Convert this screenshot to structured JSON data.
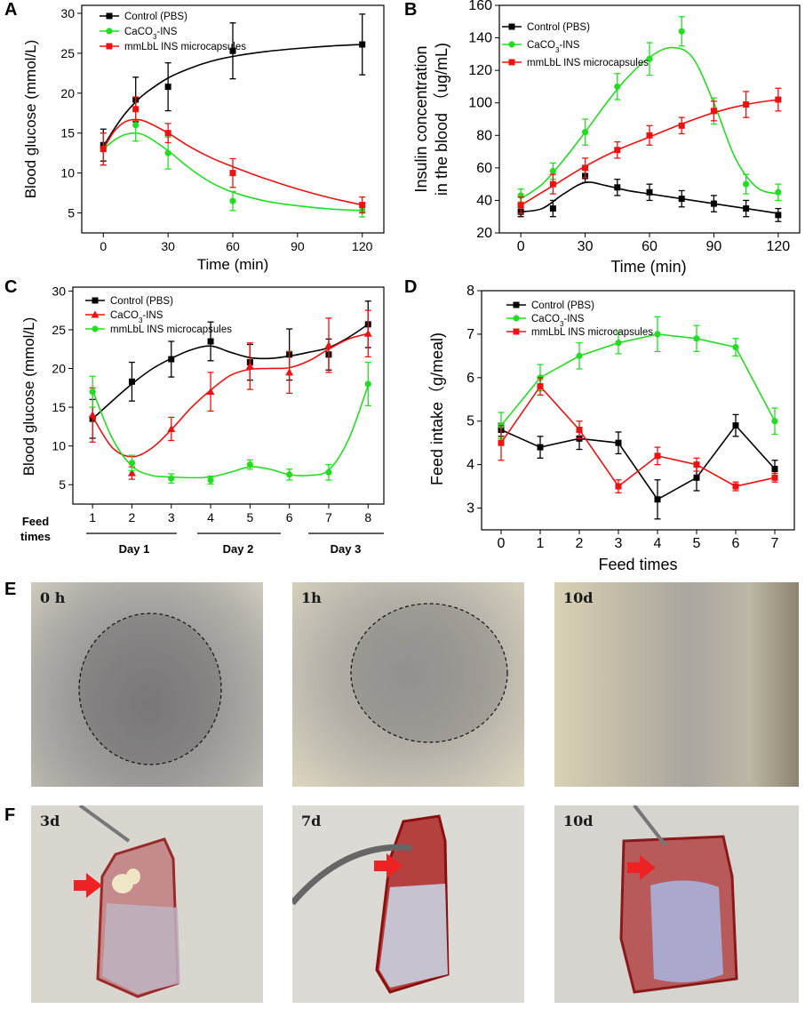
{
  "panels": {
    "A": "A",
    "B": "B",
    "C": "C",
    "D": "D",
    "E": "E",
    "F": "F"
  },
  "colors": {
    "control": "#000000",
    "caco3": "#22dd22",
    "mmlbl": "#ee1111",
    "arrow": "#ee2222"
  },
  "chart_data": [
    {
      "id": "A",
      "type": "line",
      "title": "",
      "xlabel": "Time (min)",
      "ylabel": "Blood glucose (mmol/L)",
      "xlim": [
        -10,
        130
      ],
      "ylim": [
        2.5,
        31
      ],
      "xticks": [
        0,
        30,
        60,
        90,
        120
      ],
      "yticks": [
        5,
        10,
        15,
        20,
        25,
        30
      ],
      "legend": [
        "Control (PBS)",
        "CaCO3-INS",
        "mmLbL INS microcapsules"
      ],
      "series": [
        {
          "name": "Control (PBS)",
          "color": "#000000",
          "marker": "square",
          "x": [
            0,
            15,
            30,
            60,
            120
          ],
          "y": [
            13.5,
            19.2,
            20.8,
            25.3,
            26.1
          ],
          "err": [
            2.0,
            2.8,
            3.0,
            3.5,
            3.8
          ],
          "curve_x": [
            0,
            5,
            10,
            15,
            20,
            30,
            40,
            50,
            60,
            75,
            90,
            105,
            120
          ],
          "curve_y": [
            13.3,
            15.5,
            17.4,
            18.9,
            20.1,
            21.9,
            23.1,
            24.0,
            24.6,
            25.2,
            25.6,
            25.9,
            26.1
          ]
        },
        {
          "name": "CaCO3-INS",
          "color": "#22dd22",
          "marker": "circle",
          "x": [
            0,
            15,
            30,
            60,
            120
          ],
          "y": [
            13.0,
            16.0,
            12.5,
            6.5,
            5.3
          ],
          "err": [
            2.0,
            2.0,
            2.0,
            1.2,
            0.8
          ],
          "curve_x": [
            0,
            5,
            10,
            15,
            20,
            30,
            40,
            50,
            60,
            75,
            90,
            105,
            120
          ],
          "curve_y": [
            13.0,
            14.1,
            14.8,
            15.0,
            14.6,
            12.8,
            10.6,
            8.8,
            7.6,
            6.5,
            5.9,
            5.5,
            5.3
          ]
        },
        {
          "name": "mmLbL INS microcapsules",
          "color": "#ee1111",
          "marker": "square",
          "x": [
            0,
            15,
            30,
            60,
            120
          ],
          "y": [
            13.0,
            18.0,
            15.0,
            10.0,
            6.0
          ],
          "err": [
            2.0,
            1.5,
            1.2,
            1.8,
            1.0
          ],
          "curve_x": [
            0,
            5,
            10,
            15,
            20,
            30,
            40,
            50,
            60,
            75,
            90,
            105,
            120
          ],
          "curve_y": [
            13.0,
            15.2,
            16.4,
            16.7,
            16.4,
            15.0,
            13.3,
            11.9,
            10.8,
            9.3,
            8.0,
            6.9,
            6.0
          ]
        }
      ]
    },
    {
      "id": "B",
      "type": "line",
      "title": "",
      "xlabel": "Time (min)",
      "ylabel": "Insulin concentration in the blood (ug/mL)",
      "ylabel_line1": "Insulin concentration",
      "ylabel_line2": "in the blood （ug/mL)",
      "xlim": [
        -10,
        130
      ],
      "ylim": [
        20,
        160
      ],
      "xticks": [
        0,
        30,
        60,
        90,
        120
      ],
      "yticks": [
        20,
        40,
        60,
        80,
        100,
        120,
        140,
        160
      ],
      "legend": [
        "Control (PBS)",
        "CaCO3-INS",
        "mmLbL INS microcapsules"
      ],
      "series": [
        {
          "name": "Control (PBS)",
          "color": "#000000",
          "marker": "square",
          "x": [
            0,
            15,
            30,
            45,
            60,
            75,
            90,
            105,
            120
          ],
          "y": [
            33,
            35,
            55,
            48,
            45,
            41,
            38,
            35,
            31
          ],
          "err": [
            3,
            5,
            4,
            5,
            5,
            5,
            5,
            5,
            4
          ],
          "curve_x": [
            0,
            10,
            20,
            30,
            40,
            50,
            60,
            75,
            90,
            105,
            120
          ],
          "curve_y": [
            33,
            35,
            44,
            51,
            49,
            46,
            44,
            41,
            38,
            35,
            32
          ]
        },
        {
          "name": "CaCO3-INS",
          "color": "#22dd22",
          "marker": "circle",
          "x": [
            0,
            15,
            30,
            45,
            60,
            75,
            90,
            105,
            120
          ],
          "y": [
            43,
            58,
            82,
            110,
            127,
            144,
            95,
            50,
            45
          ],
          "err": [
            4,
            5,
            8,
            8,
            10,
            9,
            8,
            6,
            5
          ],
          "curve_x": [
            0,
            10,
            20,
            30,
            40,
            50,
            60,
            70,
            80,
            90,
            100,
            110,
            120
          ],
          "curve_y": [
            41,
            50,
            65,
            82,
            100,
            116,
            128,
            134,
            128,
            100,
            66,
            48,
            44
          ]
        },
        {
          "name": "mmLbL INS microcapsules",
          "color": "#ee1111",
          "marker": "square",
          "x": [
            0,
            15,
            30,
            45,
            60,
            75,
            90,
            105,
            120
          ],
          "y": [
            37,
            50,
            60,
            71,
            80,
            86,
            95,
            99,
            102
          ],
          "err": [
            5,
            6,
            6,
            5,
            6,
            5,
            6,
            8,
            7
          ],
          "curve_x": [
            0,
            15,
            30,
            45,
            60,
            75,
            90,
            105,
            120
          ],
          "curve_y": [
            37,
            49,
            61,
            71,
            79,
            87,
            94,
            99,
            102
          ]
        }
      ]
    },
    {
      "id": "C",
      "type": "line",
      "title": "",
      "xlabel": "Feed times",
      "xlabel_top": "Feed",
      "xlabel_bottom": "times",
      "ylabel": "Blood glucose (mmol/L)",
      "xlim": [
        0.5,
        8.4
      ],
      "ylim": [
        2.5,
        30.5
      ],
      "xticks": [
        1,
        2,
        3,
        4,
        5,
        6,
        7,
        8
      ],
      "yticks": [
        5,
        10,
        15,
        20,
        25,
        30
      ],
      "day_labels": [
        "Day 1",
        "Day 2",
        "Day 3"
      ],
      "legend": [
        "Control (PBS)",
        "CaCO3-INS",
        "mmLbL INS microcapsules"
      ],
      "series": [
        {
          "name": "Control (PBS)",
          "color": "#000000",
          "marker": "square",
          "x": [
            1,
            2,
            3,
            4,
            5,
            6,
            7,
            8
          ],
          "y": [
            13.5,
            18.3,
            21.2,
            23.5,
            20.8,
            21.8,
            21.8,
            25.7
          ],
          "err": [
            2.5,
            2.5,
            2.3,
            2.5,
            2.3,
            3.3,
            2.0,
            3.0
          ],
          "curve_x": [
            1,
            1.5,
            2,
            2.5,
            3,
            3.5,
            4,
            4.5,
            5,
            5.5,
            6,
            6.5,
            7,
            7.5,
            8
          ],
          "curve_y": [
            13.5,
            15.8,
            18.0,
            19.9,
            21.3,
            22.4,
            22.9,
            22.1,
            21.4,
            21.3,
            21.6,
            22.1,
            22.7,
            24.0,
            25.7
          ]
        },
        {
          "name": "CaCO3-INS",
          "color": "#ee1111",
          "marker": "triangle",
          "x": [
            1,
            2,
            3,
            4,
            5,
            6,
            7,
            8
          ],
          "y": [
            14.0,
            6.5,
            12.2,
            17.0,
            20.3,
            19.5,
            23.0,
            24.5
          ],
          "err": [
            3.5,
            0.8,
            1.5,
            2.5,
            3.0,
            2.7,
            3.5,
            3.0
          ],
          "curve_x": [
            1,
            1.5,
            2,
            2.5,
            3,
            3.5,
            4,
            4.5,
            5,
            5.5,
            6,
            6.5,
            7,
            7.5,
            8
          ],
          "curve_y": [
            13.8,
            9.8,
            8.6,
            9.7,
            12.1,
            14.9,
            17.2,
            19.1,
            19.9,
            20.0,
            20.1,
            21.0,
            22.5,
            23.8,
            24.5
          ]
        },
        {
          "name": "mmLbL INS microcapsules",
          "color": "#22dd22",
          "marker": "circle",
          "x": [
            1,
            2,
            3,
            4,
            5,
            6,
            7,
            8
          ],
          "y": [
            17.0,
            7.8,
            5.8,
            5.6,
            7.6,
            6.3,
            6.6,
            18.0
          ],
          "err": [
            2.0,
            1.0,
            0.6,
            0.5,
            0.6,
            0.7,
            1.0,
            2.8
          ],
          "curve_x": [
            1,
            1.5,
            2,
            2.5,
            3,
            3.5,
            4,
            4.5,
            5,
            5.5,
            6,
            6.5,
            7,
            7.5,
            8
          ],
          "curve_y": [
            17.2,
            11.0,
            7.4,
            6.2,
            6.0,
            5.9,
            6.0,
            6.6,
            7.3,
            7.0,
            6.3,
            6.2,
            6.9,
            10.8,
            17.8
          ]
        }
      ]
    },
    {
      "id": "D",
      "type": "line",
      "title": "",
      "xlabel": "Feed times",
      "ylabel": "Feed intake（g/meal)",
      "xlim": [
        -0.5,
        7.5
      ],
      "ylim": [
        2.5,
        8
      ],
      "xticks": [
        0,
        1,
        2,
        3,
        4,
        5,
        6,
        7
      ],
      "yticks": [
        3,
        4,
        5,
        6,
        7,
        8
      ],
      "legend": [
        "Control (PBS)",
        "CaCO3-INS",
        "mmLbL INS microcapsules"
      ],
      "series": [
        {
          "name": "Control (PBS)",
          "color": "#000000",
          "marker": "square",
          "x": [
            0,
            1,
            2,
            3,
            4,
            5,
            6,
            7
          ],
          "y": [
            4.8,
            4.4,
            4.6,
            4.5,
            3.2,
            3.7,
            4.9,
            3.9
          ],
          "err": [
            0.15,
            0.25,
            0.25,
            0.25,
            0.45,
            0.3,
            0.25,
            0.2
          ]
        },
        {
          "name": "CaCO3-INS",
          "color": "#22dd22",
          "marker": "circle",
          "x": [
            0,
            1,
            2,
            3,
            4,
            5,
            6,
            7
          ],
          "y": [
            4.9,
            6.0,
            6.5,
            6.8,
            7.0,
            6.9,
            6.7,
            5.0
          ],
          "err": [
            0.3,
            0.3,
            0.3,
            0.25,
            0.4,
            0.3,
            0.2,
            0.3
          ]
        },
        {
          "name": "mmLbL INS microcapsules",
          "color": "#ee1111",
          "marker": "square",
          "x": [
            0,
            1,
            2,
            3,
            4,
            5,
            6,
            7
          ],
          "y": [
            4.5,
            5.8,
            4.8,
            3.5,
            4.2,
            4.0,
            3.5,
            3.7
          ],
          "err": [
            0.4,
            0.2,
            0.2,
            0.15,
            0.2,
            0.15,
            0.1,
            0.1
          ]
        }
      ]
    }
  ],
  "photos": {
    "E": [
      {
        "label": "0 h",
        "circle": true
      },
      {
        "label": "1h",
        "circle": true
      },
      {
        "label": "10d",
        "circle": false
      }
    ],
    "F": [
      {
        "label": "3d"
      },
      {
        "label": "7d"
      },
      {
        "label": "10d"
      }
    ]
  }
}
